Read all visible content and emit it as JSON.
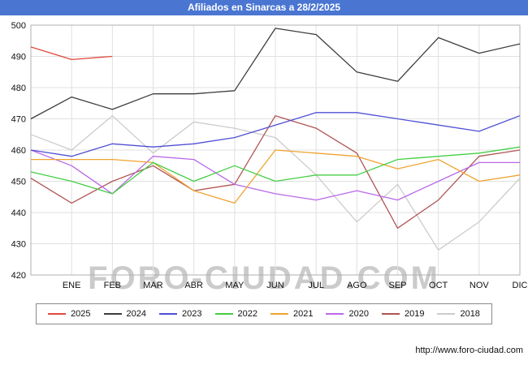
{
  "header": {
    "title": "Afiliados en Sinarcas a 28/2/2025",
    "bg_color": "#4a76d2"
  },
  "watermark": "FORO-CIUDAD.COM",
  "footer": {
    "url": "http://www.foro-ciudad.com"
  },
  "chart_data": {
    "type": "line",
    "title": "Afiliados en Sinarcas a 28/2/2025",
    "x_categories": [
      "ENE",
      "FEB",
      "MAR",
      "ABR",
      "MAY",
      "JUN",
      "JUL",
      "AGO",
      "SEP",
      "OCT",
      "NOV",
      "DIC"
    ],
    "ylabel": "",
    "xlabel": "",
    "ylim": [
      420,
      500
    ],
    "ytick_step": 10,
    "grid": true,
    "legend_position": "bottom",
    "note": "First value of each series is the level at the left edge of the plot (before ENE), followed by the 12 monthly values ENE..DIC. Values estimated from gridlines.",
    "series": [
      {
        "name": "2025",
        "color": "#e0493c",
        "values": [
          493,
          489,
          490,
          null,
          null,
          null,
          null,
          null,
          null,
          null,
          null,
          null,
          null
        ]
      },
      {
        "name": "2024",
        "color": "#3d3d3d",
        "values": [
          470,
          477,
          473,
          478,
          478,
          479,
          499,
          497,
          485,
          482,
          496,
          491,
          494
        ]
      },
      {
        "name": "2023",
        "color": "#5050d5",
        "values": [
          460,
          458,
          462,
          461,
          462,
          464,
          468,
          472,
          472,
          470,
          468,
          466,
          471
        ]
      },
      {
        "name": "2022",
        "color": "#44cf44",
        "values": [
          453,
          450,
          446,
          456,
          450,
          455,
          450,
          452,
          452,
          457,
          458,
          459,
          461
        ]
      },
      {
        "name": "2021",
        "color": "#efa32f",
        "values": [
          457,
          457,
          457,
          456,
          447,
          443,
          460,
          459,
          458,
          454,
          457,
          450,
          452
        ]
      },
      {
        "name": "2020",
        "color": "#b968e8",
        "values": [
          460,
          455,
          446,
          458,
          457,
          449,
          446,
          444,
          447,
          444,
          450,
          456,
          456
        ]
      },
      {
        "name": "2019",
        "color": "#b05555",
        "values": [
          451,
          443,
          450,
          455,
          447,
          449,
          471,
          467,
          459,
          435,
          444,
          458,
          460
        ]
      },
      {
        "name": "2018",
        "color": "#cccccc",
        "values": [
          465,
          460,
          471,
          459,
          469,
          467,
          464,
          452,
          437,
          449,
          428,
          437,
          451
        ]
      }
    ]
  }
}
